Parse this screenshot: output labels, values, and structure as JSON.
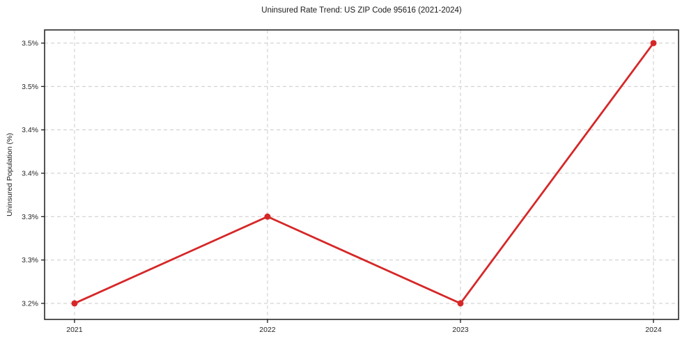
{
  "chart_data": {
    "type": "line",
    "title": "Uninsured Rate Trend: US ZIP Code 95616 (2021-2024)",
    "xlabel": "",
    "ylabel": "Uninsured Population (%)",
    "x": [
      2021,
      2022,
      2023,
      2024
    ],
    "values": [
      3.2,
      3.3,
      3.2,
      3.5
    ],
    "xticks": {
      "values": [
        2021,
        2022,
        2023,
        2024
      ],
      "labels": [
        "2021",
        "2022",
        "2023",
        "2024"
      ]
    },
    "yticks": {
      "values": [
        3.2,
        3.25,
        3.3,
        3.35,
        3.4,
        3.45,
        3.5
      ],
      "labels": [
        "3.2%",
        "3.3%",
        "3.3%",
        "3.4%",
        "3.4%",
        "3.5%",
        "3.5%"
      ]
    },
    "xlim": [
      2020.845,
      2024.13
    ],
    "ylim": [
      3.1815,
      3.5152
    ],
    "grid": true,
    "legend": "none",
    "line_color": "#d62728",
    "marker_color": "#d62728",
    "grid_color": "#cfcfcf",
    "axis_color": "#1a1a1a",
    "text_color": "#262626",
    "background": "#ffffff"
  }
}
